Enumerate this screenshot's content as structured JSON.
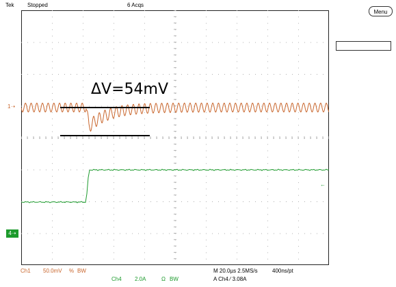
{
  "header": {
    "brand": "Tek",
    "status": "Stopped",
    "acqs": "6 Acqs"
  },
  "side": {
    "menu_label": "Menu"
  },
  "markers": {
    "ch1": "1",
    "ch4": "4"
  },
  "annotation": {
    "text": "ΔV=54mV"
  },
  "footer": {
    "ch1_label": "Ch1",
    "ch1_scale": "50.0mV",
    "ch1_coupling": "%",
    "ch1_bw": "BW",
    "ch4_label": "Ch4",
    "ch4_scale": "2.0A",
    "ch4_coupling": "Ω",
    "ch4_bw": "BW",
    "timebase": "M 20.0µs 2.5MS/s",
    "record": "400ns/pt",
    "trigger": "A  Ch4  ⁄  3.08A"
  },
  "colors": {
    "ch1": "#c8642a",
    "ch4": "#1c9a2c",
    "grid": "#b0b0b0"
  }
}
